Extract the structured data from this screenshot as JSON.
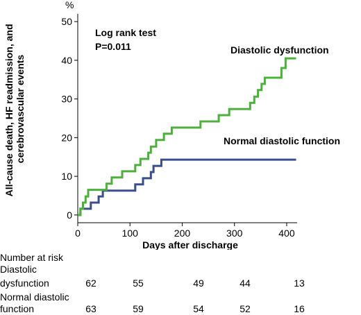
{
  "chart_data": {
    "type": "line",
    "step": true,
    "ylabel_unit": "%",
    "ylabel": "All-cause death, HF readmission, and cerebrovascular events",
    "xlabel": "Days after discharge",
    "xlim": [
      0,
      420
    ],
    "ylim": [
      -2,
      52
    ],
    "xticks": [
      0,
      100,
      200,
      300,
      400
    ],
    "yticks": [
      0,
      10,
      20,
      30,
      40,
      50
    ],
    "grid": false,
    "annotation": {
      "line1": "Log rank test",
      "line2": "P=0.011"
    },
    "series": [
      {
        "name": "Diastolic dysfunction",
        "color": "#4daf3c",
        "points": [
          [
            0,
            0
          ],
          [
            5,
            0
          ],
          [
            5,
            1.6
          ],
          [
            10,
            1.6
          ],
          [
            10,
            3.2
          ],
          [
            15,
            3.2
          ],
          [
            15,
            4.8
          ],
          [
            20,
            4.8
          ],
          [
            20,
            6.5
          ],
          [
            55,
            6.5
          ],
          [
            55,
            8.1
          ],
          [
            65,
            8.1
          ],
          [
            65,
            9.7
          ],
          [
            85,
            9.7
          ],
          [
            85,
            11.3
          ],
          [
            110,
            11.3
          ],
          [
            110,
            12.9
          ],
          [
            120,
            12.9
          ],
          [
            120,
            14.5
          ],
          [
            135,
            14.5
          ],
          [
            135,
            16.1
          ],
          [
            140,
            16.1
          ],
          [
            140,
            17.7
          ],
          [
            150,
            17.7
          ],
          [
            150,
            19.4
          ],
          [
            165,
            19.4
          ],
          [
            165,
            21.0
          ],
          [
            180,
            21.0
          ],
          [
            180,
            22.6
          ],
          [
            235,
            22.6
          ],
          [
            235,
            24.2
          ],
          [
            270,
            24.2
          ],
          [
            270,
            25.8
          ],
          [
            290,
            25.8
          ],
          [
            290,
            27.4
          ],
          [
            330,
            27.4
          ],
          [
            330,
            29.0
          ],
          [
            338,
            29.0
          ],
          [
            338,
            30.6
          ],
          [
            345,
            30.6
          ],
          [
            345,
            32.3
          ],
          [
            352,
            32.3
          ],
          [
            352,
            33.9
          ],
          [
            358,
            33.9
          ],
          [
            358,
            35.5
          ],
          [
            390,
            35.5
          ],
          [
            390,
            38.0
          ],
          [
            398,
            38.0
          ],
          [
            398,
            40.5
          ],
          [
            418,
            40.5
          ]
        ]
      },
      {
        "name": "Normal diastolic function",
        "color": "#3b4e8c",
        "points": [
          [
            0,
            0
          ],
          [
            5,
            0
          ],
          [
            5,
            1.6
          ],
          [
            25,
            1.6
          ],
          [
            25,
            3.2
          ],
          [
            40,
            3.2
          ],
          [
            40,
            4.8
          ],
          [
            48,
            4.8
          ],
          [
            48,
            6.3
          ],
          [
            110,
            6.3
          ],
          [
            110,
            7.9
          ],
          [
            125,
            7.9
          ],
          [
            125,
            9.5
          ],
          [
            140,
            9.5
          ],
          [
            140,
            11.1
          ],
          [
            145,
            11.1
          ],
          [
            145,
            12.7
          ],
          [
            160,
            12.7
          ],
          [
            160,
            14.3
          ],
          [
            418,
            14.3
          ]
        ]
      }
    ],
    "risk_table": {
      "header": "Number at risk",
      "rows": [
        {
          "label_line1": "Diastolic",
          "label_line2": "dysfunction",
          "values": [
            "62",
            "55",
            "49",
            "44",
            "13"
          ]
        },
        {
          "label_line1": "Normal diastolic",
          "label_line2": "function",
          "values": [
            "63",
            "59",
            "54",
            "52",
            "16"
          ]
        }
      ]
    }
  }
}
